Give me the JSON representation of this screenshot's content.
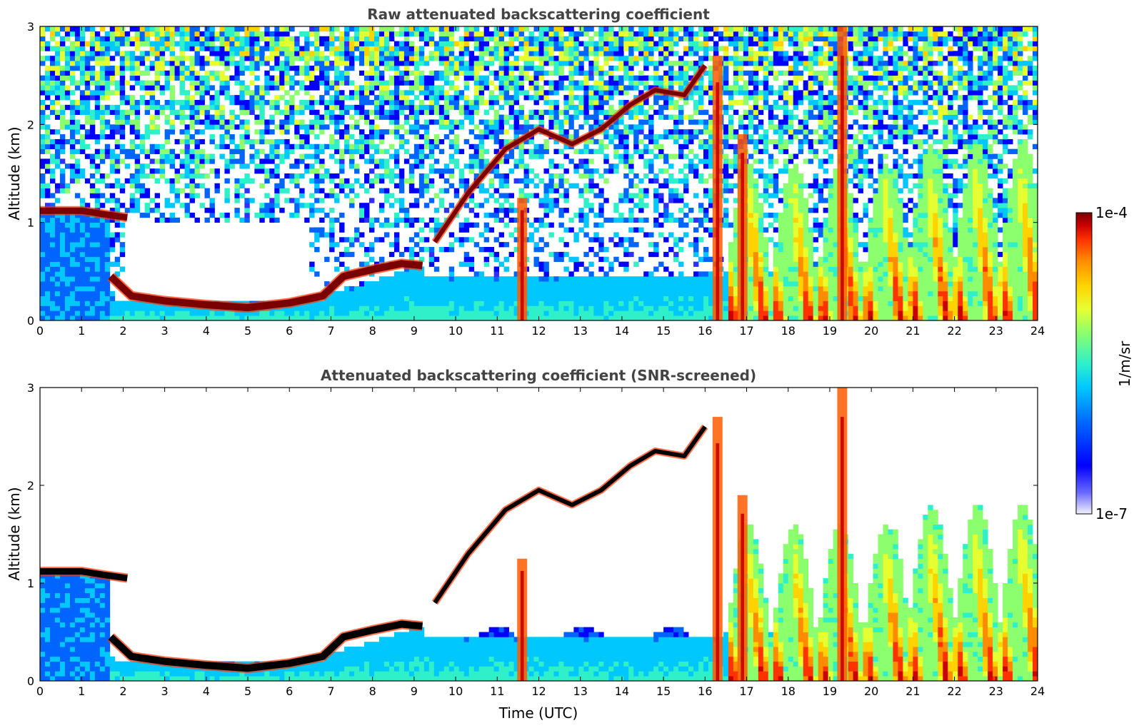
{
  "chart_data": [
    {
      "type": "heatmap",
      "title": "Raw attenuated backscattering coefficient",
      "xlabel": "",
      "ylabel": "Altitude (km)",
      "xlim": [
        0,
        24
      ],
      "ylim": [
        0,
        3
      ],
      "xticks": [
        "0",
        "1",
        "2",
        "3",
        "4",
        "5",
        "6",
        "7",
        "8",
        "9",
        "10",
        "11",
        "12",
        "13",
        "14",
        "15",
        "16",
        "17",
        "18",
        "19",
        "20",
        "21",
        "22",
        "23",
        "24"
      ],
      "yticks": [
        "0",
        "1",
        "2",
        "3"
      ],
      "screened": false,
      "layers": {
        "boundary_layer_top_km": [
          {
            "t": 0,
            "h": 1.12
          },
          {
            "t": 1.0,
            "h": 1.12
          },
          {
            "t": 1.6,
            "h": 1.08
          },
          {
            "t": 2.1,
            "h": 1.05
          },
          {
            "t": 1.7,
            "h": 0.45
          },
          {
            "t": 2.2,
            "h": 0.25
          },
          {
            "t": 3.0,
            "h": 0.2
          },
          {
            "t": 4.0,
            "h": 0.16
          },
          {
            "t": 5.0,
            "h": 0.13
          },
          {
            "t": 6.0,
            "h": 0.18
          },
          {
            "t": 6.8,
            "h": 0.25
          },
          {
            "t": 7.3,
            "h": 0.45
          },
          {
            "t": 8.0,
            "h": 0.52
          },
          {
            "t": 8.7,
            "h": 0.58
          },
          {
            "t": 9.2,
            "h": 0.56
          }
        ],
        "elevated_layer_km": [
          {
            "t": 9.5,
            "h": 0.8
          },
          {
            "t": 10.3,
            "h": 1.3
          },
          {
            "t": 11.2,
            "h": 1.75
          },
          {
            "t": 12.0,
            "h": 1.95
          },
          {
            "t": 12.8,
            "h": 1.8
          },
          {
            "t": 13.5,
            "h": 1.95
          },
          {
            "t": 14.2,
            "h": 2.2
          },
          {
            "t": 14.8,
            "h": 2.35
          },
          {
            "t": 15.5,
            "h": 2.3
          },
          {
            "t": 16.0,
            "h": 2.6
          }
        ]
      }
    },
    {
      "type": "heatmap",
      "title": "Attenuated backscattering coefficient (SNR-screened)",
      "xlabel": "Time (UTC)",
      "ylabel": "Altitude (km)",
      "xlim": [
        0,
        24
      ],
      "ylim": [
        0,
        3
      ],
      "xticks": [
        "0",
        "1",
        "2",
        "3",
        "4",
        "5",
        "6",
        "7",
        "8",
        "9",
        "10",
        "11",
        "12",
        "13",
        "14",
        "15",
        "16",
        "17",
        "18",
        "19",
        "20",
        "21",
        "22",
        "23",
        "24"
      ],
      "yticks": [
        "0",
        "1",
        "2",
        "3"
      ],
      "screened": true
    }
  ],
  "colorbar": {
    "label": "1/m/sr",
    "max_label": "1e-4",
    "min_label": "1e-7",
    "range": [
      1e-07,
      0.0001
    ],
    "scale": "log",
    "colormap": [
      "#f2f2fb",
      "#2f2fff",
      "#0000ff",
      "#0064ff",
      "#00c8ff",
      "#2ff0c8",
      "#8cff6e",
      "#e6ff30",
      "#ffd200",
      "#ff8c00",
      "#ff3200",
      "#c80000",
      "#7a0000"
    ]
  }
}
